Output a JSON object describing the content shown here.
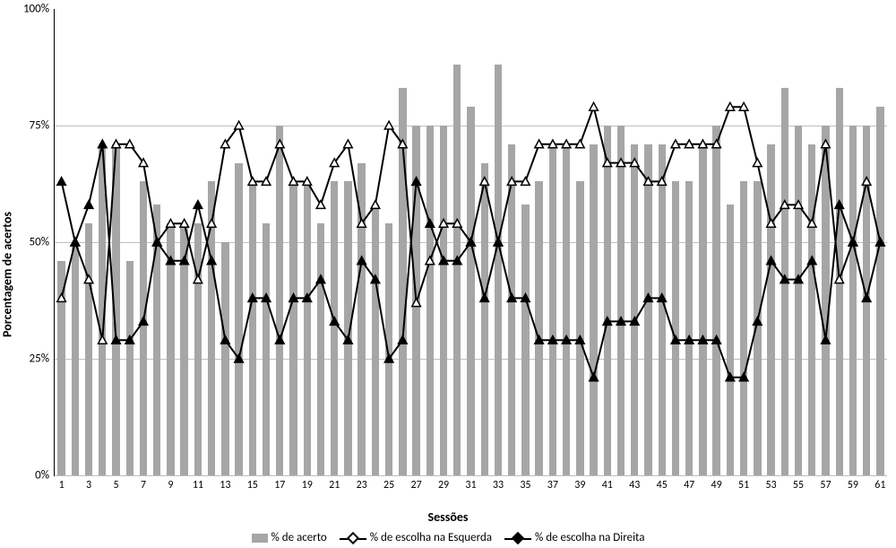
{
  "chart": {
    "type": "bar+line",
    "x_axis_label": "Sessões",
    "y_axis_label": "Porcentagem de acertos",
    "ylim": [
      0,
      100
    ],
    "y_ticks": [
      0,
      25,
      50,
      75,
      100
    ],
    "y_tick_labels": [
      "0%",
      "25%",
      "50%",
      "75%",
      "100%"
    ],
    "x_tick_positions": [
      1,
      3,
      5,
      7,
      9,
      11,
      13,
      15,
      17,
      19,
      21,
      23,
      25,
      27,
      29,
      31,
      33,
      35,
      37,
      39,
      41,
      43,
      45,
      47,
      49,
      51,
      53,
      55,
      57,
      59,
      61
    ],
    "x_tick_labels": [
      "1",
      "3",
      "5",
      "7",
      "9",
      "11",
      "13",
      "15",
      "17",
      "19",
      "21",
      "23",
      "25",
      "27",
      "29",
      "31",
      "33",
      "35",
      "37",
      "39",
      "41",
      "43",
      "45",
      "47",
      "49",
      "51",
      "53",
      "55",
      "57",
      "59",
      "61"
    ],
    "sessions": 61,
    "bar_color": "#a6a6a6",
    "line_color": "#000000",
    "grid_color": "#bfbfbf",
    "background_color": "#ffffff",
    "bar_width_ratio": 0.55,
    "line_width": 2,
    "marker_size": 8,
    "series_bar": {
      "name": "% de acerto",
      "values": [
        46,
        50,
        54,
        71,
        71,
        46,
        63,
        58,
        54,
        54,
        54,
        63,
        50,
        67,
        63,
        54,
        75,
        63,
        63,
        54,
        63,
        63,
        67,
        58,
        54,
        83,
        75,
        75,
        75,
        88,
        79,
        67,
        88,
        71,
        58,
        63,
        71,
        71,
        63,
        71,
        75,
        75,
        71,
        71,
        71,
        63,
        63,
        71,
        75,
        58,
        63,
        63,
        71,
        83,
        75,
        71,
        75,
        83,
        75,
        75,
        79
      ]
    },
    "series_esquerda": {
      "name": "% de escolha na Esquerda",
      "marker_fill": "#ffffff",
      "values": [
        38,
        50,
        42,
        29,
        71,
        71,
        67,
        50,
        54,
        54,
        42,
        54,
        71,
        75,
        63,
        63,
        71,
        63,
        63,
        58,
        67,
        71,
        54,
        58,
        75,
        71,
        37,
        46,
        54,
        54,
        50,
        63,
        50,
        63,
        63,
        71,
        71,
        71,
        71,
        79,
        67,
        67,
        67,
        63,
        63,
        71,
        71,
        71,
        71,
        79,
        79,
        67,
        54,
        58,
        58,
        54,
        71,
        42,
        50,
        63,
        50
      ]
    },
    "series_direita": {
      "name": "% de escolha na Direita",
      "marker_fill": "#000000",
      "values": [
        63,
        50,
        58,
        71,
        29,
        29,
        33,
        50,
        46,
        46,
        58,
        46,
        29,
        25,
        38,
        38,
        29,
        38,
        38,
        42,
        33,
        29,
        46,
        42,
        25,
        29,
        63,
        54,
        46,
        46,
        50,
        38,
        50,
        38,
        38,
        29,
        29,
        29,
        29,
        21,
        33,
        33,
        33,
        38,
        38,
        29,
        29,
        29,
        29,
        21,
        21,
        33,
        46,
        42,
        42,
        46,
        29,
        58,
        50,
        38,
        50
      ]
    },
    "legend": {
      "items": [
        "% de acerto",
        "% de escolha na Esquerda",
        "% de escolha na Direita"
      ]
    }
  }
}
